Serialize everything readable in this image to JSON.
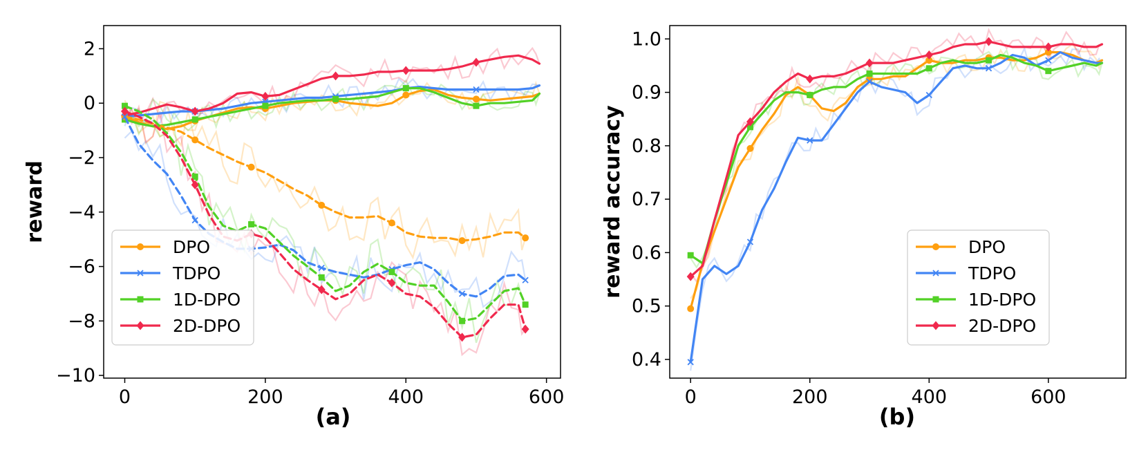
{
  "colors": {
    "DPO": "#ff9f0f",
    "TDPO": "#4285f4",
    "1D-DPO": "#52d126",
    "2D-DPO": "#f0294d"
  },
  "chart_data": [
    {
      "type": "line",
      "panel_label": "(a)",
      "title": "",
      "xlabel": "",
      "ylabel": "reward",
      "xlim": [
        -30,
        620
      ],
      "ylim": [
        -10.1,
        2.85
      ],
      "xticks": [
        0,
        200,
        400,
        600
      ],
      "xtick_labels": [
        "0",
        "200",
        "400",
        "600"
      ],
      "yticks": [
        2,
        0,
        -2,
        -4,
        -6,
        -8,
        -10
      ],
      "ytick_labels": [
        "2",
        "0",
        "−2",
        "−4",
        "−6",
        "−8",
        "−10"
      ],
      "legend": {
        "position": "lower-left",
        "entries": [
          "DPO",
          "TDPO",
          "1D-DPO",
          "2D-DPO"
        ]
      },
      "series": [
        {
          "name": "DPO",
          "style": "solid",
          "marker": "circle",
          "x": [
            0,
            20,
            40,
            60,
            80,
            100,
            120,
            140,
            160,
            180,
            200,
            220,
            240,
            260,
            280,
            300,
            320,
            340,
            360,
            380,
            400,
            420,
            440,
            460,
            480,
            500,
            520,
            540,
            560,
            580,
            590
          ],
          "values": [
            -0.5,
            -0.7,
            -0.85,
            -0.95,
            -0.85,
            -0.65,
            -0.5,
            -0.35,
            -0.2,
            -0.15,
            -0.2,
            -0.1,
            0.0,
            0.05,
            0.1,
            0.1,
            0.0,
            -0.05,
            -0.1,
            0.0,
            0.3,
            0.45,
            0.5,
            0.3,
            0.2,
            0.15,
            0.1,
            0.15,
            0.2,
            0.25,
            0.35
          ],
          "markers_at": [
            0,
            100,
            200,
            300,
            400,
            500
          ]
        },
        {
          "name": "TDPO",
          "style": "solid",
          "marker": "x",
          "x": [
            0,
            20,
            40,
            60,
            80,
            100,
            120,
            140,
            160,
            180,
            200,
            220,
            240,
            260,
            280,
            300,
            320,
            340,
            360,
            380,
            400,
            420,
            440,
            460,
            480,
            500,
            520,
            540,
            560,
            580,
            590
          ],
          "values": [
            -0.5,
            -0.45,
            -0.4,
            -0.35,
            -0.3,
            -0.3,
            -0.25,
            -0.2,
            -0.1,
            0.0,
            0.05,
            0.1,
            0.15,
            0.2,
            0.2,
            0.25,
            0.3,
            0.35,
            0.4,
            0.45,
            0.55,
            0.6,
            0.55,
            0.5,
            0.5,
            0.5,
            0.5,
            0.5,
            0.5,
            0.55,
            0.65
          ],
          "markers_at": [
            0,
            100,
            200,
            300,
            400,
            500
          ]
        },
        {
          "name": "1D-DPO",
          "style": "solid",
          "marker": "square",
          "x": [
            0,
            20,
            40,
            60,
            80,
            100,
            120,
            140,
            160,
            180,
            200,
            220,
            240,
            260,
            280,
            300,
            320,
            340,
            360,
            380,
            400,
            420,
            440,
            460,
            480,
            500,
            520,
            540,
            560,
            580,
            590
          ],
          "values": [
            -0.6,
            -0.75,
            -0.85,
            -0.8,
            -0.7,
            -0.6,
            -0.5,
            -0.4,
            -0.3,
            -0.2,
            -0.1,
            0.0,
            0.05,
            0.1,
            0.1,
            0.15,
            0.15,
            0.2,
            0.25,
            0.4,
            0.55,
            0.55,
            0.4,
            0.2,
            0.0,
            -0.1,
            0.0,
            0.0,
            0.05,
            0.1,
            0.35
          ],
          "markers_at": [
            0,
            100,
            200,
            300,
            400,
            500
          ]
        },
        {
          "name": "2D-DPO",
          "style": "solid",
          "marker": "diamond",
          "x": [
            0,
            20,
            40,
            60,
            80,
            100,
            120,
            140,
            160,
            180,
            200,
            220,
            240,
            260,
            280,
            300,
            320,
            340,
            360,
            380,
            400,
            420,
            440,
            460,
            480,
            500,
            520,
            540,
            560,
            580,
            590
          ],
          "values": [
            -0.45,
            -0.35,
            -0.2,
            -0.05,
            -0.15,
            -0.3,
            -0.2,
            0.0,
            0.35,
            0.4,
            0.25,
            0.3,
            0.5,
            0.7,
            0.9,
            1.0,
            1.0,
            1.05,
            1.15,
            1.15,
            1.2,
            1.2,
            1.2,
            1.25,
            1.35,
            1.5,
            1.6,
            1.7,
            1.75,
            1.6,
            1.45
          ],
          "markers_at": [
            0,
            100,
            200,
            300,
            400,
            500
          ]
        },
        {
          "name": "DPO",
          "style": "dashed",
          "marker": "circle",
          "x": [
            0,
            20,
            40,
            60,
            80,
            100,
            120,
            140,
            160,
            180,
            200,
            220,
            240,
            260,
            280,
            300,
            320,
            340,
            360,
            380,
            400,
            420,
            440,
            460,
            480,
            500,
            520,
            540,
            560,
            570
          ],
          "values": [
            -0.5,
            -0.6,
            -0.75,
            -0.9,
            -1.05,
            -1.35,
            -1.65,
            -1.9,
            -2.15,
            -2.35,
            -2.55,
            -2.85,
            -3.15,
            -3.4,
            -3.75,
            -4.0,
            -4.2,
            -4.2,
            -4.15,
            -4.4,
            -4.75,
            -4.9,
            -4.95,
            -4.95,
            -5.05,
            -5.0,
            -4.9,
            -4.75,
            -4.75,
            -4.95
          ],
          "markers_at": [
            0,
            100,
            180,
            280,
            380,
            480,
            570
          ]
        },
        {
          "name": "TDPO",
          "style": "dashed",
          "marker": "x",
          "x": [
            0,
            20,
            40,
            60,
            80,
            100,
            120,
            140,
            160,
            180,
            200,
            220,
            240,
            260,
            280,
            300,
            320,
            340,
            360,
            380,
            400,
            420,
            440,
            460,
            480,
            500,
            520,
            540,
            560,
            570
          ],
          "values": [
            -0.5,
            -1.5,
            -2.1,
            -2.6,
            -3.4,
            -4.3,
            -4.8,
            -5.1,
            -5.35,
            -5.35,
            -5.3,
            -5.2,
            -5.4,
            -5.85,
            -6.05,
            -6.2,
            -6.3,
            -6.4,
            -6.3,
            -6.1,
            -5.95,
            -5.85,
            -6.1,
            -6.6,
            -7.0,
            -7.1,
            -6.8,
            -6.35,
            -6.3,
            -6.5
          ],
          "markers_at": [
            0,
            100,
            180,
            280,
            380,
            480,
            570
          ]
        },
        {
          "name": "1D-DPO",
          "style": "dashed",
          "marker": "square",
          "x": [
            0,
            20,
            40,
            60,
            80,
            100,
            120,
            140,
            160,
            180,
            200,
            220,
            240,
            260,
            280,
            300,
            320,
            340,
            360,
            380,
            400,
            420,
            440,
            460,
            480,
            500,
            520,
            540,
            560,
            570
          ],
          "values": [
            -0.1,
            -0.3,
            -0.6,
            -1.1,
            -1.8,
            -2.7,
            -3.8,
            -4.5,
            -4.7,
            -4.45,
            -4.6,
            -5.1,
            -5.6,
            -6.0,
            -6.4,
            -6.9,
            -6.7,
            -6.2,
            -5.9,
            -6.2,
            -6.6,
            -6.7,
            -6.7,
            -7.3,
            -8.0,
            -7.9,
            -7.4,
            -6.9,
            -6.8,
            -7.4
          ],
          "markers_at": [
            0,
            100,
            180,
            280,
            380,
            480,
            570
          ]
        },
        {
          "name": "2D-DPO",
          "style": "dashed",
          "marker": "diamond",
          "x": [
            0,
            20,
            40,
            60,
            80,
            100,
            120,
            140,
            160,
            180,
            200,
            220,
            240,
            260,
            280,
            300,
            320,
            340,
            360,
            380,
            400,
            420,
            440,
            460,
            480,
            500,
            520,
            540,
            560,
            570
          ],
          "values": [
            -0.3,
            -0.5,
            -0.75,
            -1.2,
            -2.0,
            -3.0,
            -4.1,
            -4.9,
            -5.05,
            -4.8,
            -4.95,
            -5.5,
            -6.1,
            -6.5,
            -6.85,
            -7.2,
            -7.0,
            -6.5,
            -6.3,
            -6.6,
            -7.0,
            -7.1,
            -7.5,
            -8.1,
            -8.6,
            -8.5,
            -7.9,
            -7.4,
            -7.4,
            -8.3
          ],
          "markers_at": [
            0,
            100,
            180,
            280,
            380,
            480,
            570
          ]
        }
      ]
    },
    {
      "type": "line",
      "panel_label": "(b)",
      "title": "",
      "xlabel": "",
      "ylabel": "reward accuracy",
      "xlim": [
        -35,
        730
      ],
      "ylim": [
        0.365,
        1.025
      ],
      "xticks": [
        0,
        200,
        400,
        600
      ],
      "xtick_labels": [
        "0",
        "200",
        "400",
        "600"
      ],
      "yticks": [
        1.0,
        0.9,
        0.8,
        0.7,
        0.6,
        0.5,
        0.4
      ],
      "ytick_labels": [
        "1.0",
        "0.9",
        "0.8",
        "0.7",
        "0.6",
        "0.5",
        "0.4"
      ],
      "legend": {
        "position": "lower-right",
        "entries": [
          "DPO",
          "TDPO",
          "1D-DPO",
          "2D-DPO"
        ]
      },
      "series": [
        {
          "name": "DPO",
          "style": "solid",
          "marker": "circle",
          "x": [
            0,
            20,
            40,
            60,
            80,
            100,
            120,
            140,
            160,
            180,
            200,
            220,
            240,
            260,
            280,
            300,
            320,
            340,
            360,
            380,
            400,
            420,
            440,
            460,
            480,
            500,
            520,
            540,
            560,
            580,
            600,
            620,
            640,
            660,
            680,
            690
          ],
          "values": [
            0.495,
            0.58,
            0.64,
            0.7,
            0.76,
            0.795,
            0.83,
            0.86,
            0.895,
            0.91,
            0.895,
            0.87,
            0.865,
            0.88,
            0.91,
            0.925,
            0.925,
            0.93,
            0.93,
            0.945,
            0.96,
            0.955,
            0.955,
            0.96,
            0.96,
            0.965,
            0.965,
            0.96,
            0.96,
            0.965,
            0.975,
            0.975,
            0.97,
            0.96,
            0.955,
            0.96
          ],
          "markers_at": [
            0,
            100,
            200,
            300,
            400,
            500,
            600
          ]
        },
        {
          "name": "TDPO",
          "style": "solid",
          "marker": "x",
          "x": [
            0,
            20,
            40,
            60,
            80,
            100,
            120,
            140,
            160,
            180,
            200,
            220,
            240,
            260,
            280,
            300,
            320,
            340,
            360,
            380,
            400,
            420,
            440,
            460,
            480,
            500,
            520,
            540,
            560,
            580,
            600,
            620,
            640,
            660,
            680,
            690
          ],
          "values": [
            0.395,
            0.55,
            0.575,
            0.56,
            0.575,
            0.62,
            0.68,
            0.72,
            0.77,
            0.815,
            0.81,
            0.81,
            0.84,
            0.87,
            0.9,
            0.92,
            0.91,
            0.905,
            0.9,
            0.88,
            0.895,
            0.92,
            0.945,
            0.95,
            0.945,
            0.945,
            0.955,
            0.97,
            0.965,
            0.95,
            0.96,
            0.975,
            0.965,
            0.96,
            0.955,
            0.955
          ],
          "markers_at": [
            0,
            100,
            200,
            300,
            400,
            500,
            600
          ]
        },
        {
          "name": "1D-DPO",
          "style": "solid",
          "marker": "square",
          "x": [
            0,
            20,
            40,
            60,
            80,
            100,
            120,
            140,
            160,
            180,
            200,
            220,
            240,
            260,
            280,
            300,
            320,
            340,
            360,
            380,
            400,
            420,
            440,
            460,
            480,
            500,
            520,
            540,
            560,
            580,
            600,
            620,
            640,
            660,
            680,
            690
          ],
          "values": [
            0.595,
            0.58,
            0.66,
            0.73,
            0.8,
            0.835,
            0.86,
            0.885,
            0.9,
            0.9,
            0.895,
            0.905,
            0.91,
            0.91,
            0.925,
            0.935,
            0.935,
            0.935,
            0.935,
            0.935,
            0.945,
            0.955,
            0.96,
            0.955,
            0.955,
            0.96,
            0.97,
            0.965,
            0.955,
            0.95,
            0.94,
            0.945,
            0.95,
            0.955,
            0.95,
            0.955
          ],
          "markers_at": [
            0,
            100,
            200,
            300,
            400,
            500,
            600
          ]
        },
        {
          "name": "2D-DPO",
          "style": "solid",
          "marker": "diamond",
          "x": [
            0,
            20,
            40,
            60,
            80,
            100,
            120,
            140,
            160,
            180,
            200,
            220,
            240,
            260,
            280,
            300,
            320,
            340,
            360,
            380,
            400,
            420,
            440,
            460,
            480,
            500,
            520,
            540,
            560,
            580,
            600,
            620,
            640,
            660,
            680,
            690
          ],
          "values": [
            0.555,
            0.575,
            0.66,
            0.74,
            0.82,
            0.845,
            0.87,
            0.9,
            0.92,
            0.935,
            0.925,
            0.93,
            0.93,
            0.935,
            0.945,
            0.955,
            0.955,
            0.955,
            0.96,
            0.965,
            0.97,
            0.975,
            0.985,
            0.99,
            0.99,
            0.995,
            0.99,
            0.985,
            0.985,
            0.985,
            0.985,
            0.99,
            0.99,
            0.985,
            0.985,
            0.99
          ],
          "markers_at": [
            0,
            100,
            200,
            300,
            400,
            500,
            600
          ]
        }
      ]
    }
  ]
}
